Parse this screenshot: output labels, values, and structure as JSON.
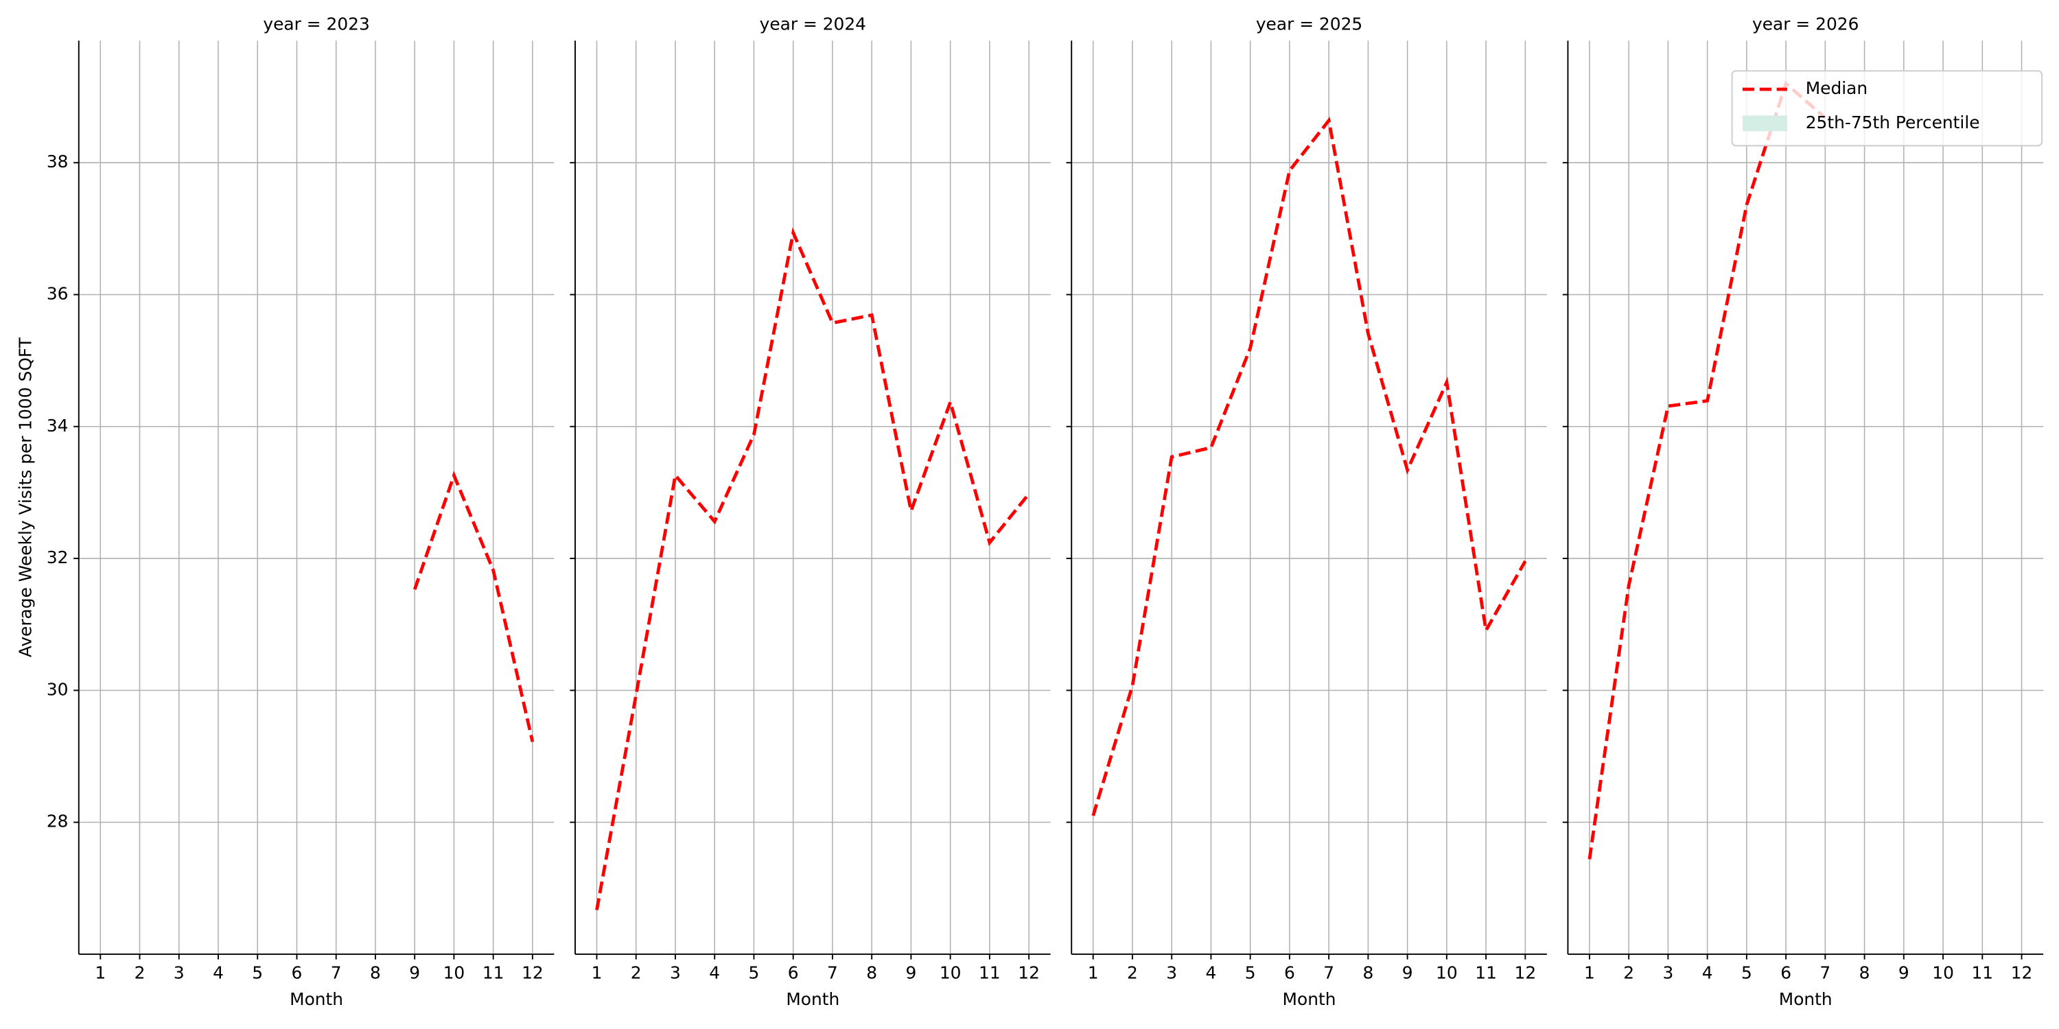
{
  "chart_data": [
    {
      "type": "line",
      "title": "year = 2023",
      "xlabel": "Month",
      "ylabel": "Average Weekly Visits per 1000 SQFT",
      "x": [
        1,
        2,
        3,
        4,
        5,
        6,
        7,
        8,
        9,
        10,
        11,
        12
      ],
      "xlim": [
        0.45,
        12.55
      ],
      "xticks": [
        1,
        2,
        3,
        4,
        5,
        6,
        7,
        8,
        9,
        10,
        11,
        12
      ],
      "ylim": [
        26.0,
        39.85
      ],
      "yticks": [
        28,
        30,
        32,
        34,
        36,
        38
      ],
      "grid": true,
      "series": [
        {
          "name": "Median",
          "color": "#ff0000",
          "values": [
            null,
            null,
            null,
            null,
            null,
            null,
            null,
            null,
            31.53,
            33.26,
            31.82,
            29.22
          ]
        }
      ]
    },
    {
      "type": "line",
      "title": "year = 2024",
      "xlabel": "Month",
      "x": [
        1,
        2,
        3,
        4,
        5,
        6,
        7,
        8,
        9,
        10,
        11,
        12
      ],
      "xlim": [
        0.45,
        12.55
      ],
      "xticks": [
        1,
        2,
        3,
        4,
        5,
        6,
        7,
        8,
        9,
        10,
        11,
        12
      ],
      "ylim": [
        26.0,
        39.85
      ],
      "yticks": [
        28,
        30,
        32,
        34,
        36,
        38
      ],
      "grid": true,
      "series": [
        {
          "name": "Median",
          "color": "#ff0000",
          "values": [
            26.67,
            29.93,
            33.26,
            32.56,
            33.88,
            36.94,
            35.57,
            35.69,
            32.72,
            34.37,
            32.24,
            32.98
          ]
        }
      ]
    },
    {
      "type": "line",
      "title": "year = 2025",
      "xlabel": "Month",
      "x": [
        1,
        2,
        3,
        4,
        5,
        6,
        7,
        8,
        9,
        10,
        11,
        12
      ],
      "xlim": [
        0.45,
        12.55
      ],
      "xticks": [
        1,
        2,
        3,
        4,
        5,
        6,
        7,
        8,
        9,
        10,
        11,
        12
      ],
      "ylim": [
        26.0,
        39.85
      ],
      "yticks": [
        28,
        30,
        32,
        34,
        36,
        38
      ],
      "grid": true,
      "series": [
        {
          "name": "Median",
          "color": "#ff0000",
          "values": [
            28.1,
            30.07,
            33.54,
            33.68,
            35.19,
            37.88,
            38.64,
            35.41,
            33.34,
            34.67,
            30.91,
            31.96
          ]
        }
      ]
    },
    {
      "type": "line",
      "title": "year = 2026",
      "xlabel": "Month",
      "x": [
        1,
        2,
        3,
        4,
        5,
        6,
        7,
        8,
        9,
        10,
        11,
        12
      ],
      "xlim": [
        0.45,
        12.55
      ],
      "xticks": [
        1,
        2,
        3,
        4,
        5,
        6,
        7,
        8,
        9,
        10,
        11,
        12
      ],
      "ylim": [
        26.0,
        39.85
      ],
      "yticks": [
        28,
        30,
        32,
        34,
        36,
        38
      ],
      "grid": true,
      "series": [
        {
          "name": "Median",
          "color": "#ff0000",
          "values": [
            27.44,
            31.59,
            34.31,
            34.39,
            37.36,
            39.2,
            38.68,
            null,
            null,
            null,
            null,
            null
          ]
        }
      ],
      "legend": "upper right",
      "band": {
        "name": "25th-75th Percentile",
        "color": "#d5eee5"
      }
    }
  ]
}
